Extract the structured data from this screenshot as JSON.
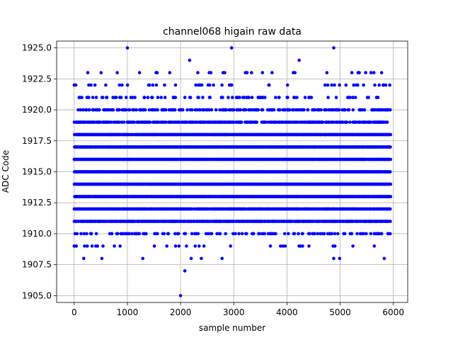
{
  "chart_data": {
    "type": "scatter",
    "title": "channel068 higain raw data",
    "xlabel": "sample number",
    "ylabel": "ADC Code",
    "xlim": [
      -330,
      6270
    ],
    "ylim": [
      1904.45,
      1925.55
    ],
    "xticks": [
      0,
      1000,
      2000,
      3000,
      4000,
      5000,
      6000
    ],
    "xtick_labels": [
      "0",
      "1000",
      "2000",
      "3000",
      "4000",
      "5000",
      "6000"
    ],
    "yticks": [
      1905.0,
      1907.5,
      1910.0,
      1912.5,
      1915.0,
      1917.5,
      1920.0,
      1922.5,
      1925.0
    ],
    "ytick_labels": [
      "1905.0",
      "1907.5",
      "1910.0",
      "1912.5",
      "1915.0",
      "1917.5",
      "1920.0",
      "1922.5",
      "1925.0"
    ],
    "grid": true,
    "marker_color": "#0000ff",
    "n_samples": 5950,
    "dense_levels": [
      1911,
      1912,
      1913,
      1914,
      1915,
      1916,
      1917,
      1918
    ],
    "band_density": [
      {
        "y": 1918,
        "density": 0.93
      },
      {
        "y": 1917,
        "density": 0.97
      },
      {
        "y": 1916,
        "density": 0.99
      },
      {
        "y": 1915,
        "density": 0.99
      },
      {
        "y": 1914,
        "density": 0.99
      },
      {
        "y": 1913,
        "density": 0.97
      },
      {
        "y": 1912,
        "density": 0.92
      },
      {
        "y": 1911,
        "density": 0.75
      },
      {
        "y": 1919,
        "density": 0.55
      },
      {
        "y": 1920,
        "density": 0.3
      },
      {
        "y": 1910,
        "density": 0.2
      },
      {
        "y": 1921,
        "density": 0.14
      },
      {
        "y": 1909,
        "density": 0.05
      },
      {
        "y": 1922,
        "density": 0.07
      },
      {
        "y": 1923,
        "density": 0.02
      }
    ],
    "outliers": [
      {
        "x": 0,
        "y": 1922
      },
      {
        "x": 30,
        "y": 1922
      },
      {
        "x": 0,
        "y": 1909
      },
      {
        "x": 40,
        "y": 1909
      },
      {
        "x": 1000,
        "y": 1925
      },
      {
        "x": 2960,
        "y": 1925
      },
      {
        "x": 4880,
        "y": 1925
      },
      {
        "x": 2170,
        "y": 1924
      },
      {
        "x": 4230,
        "y": 1924
      },
      {
        "x": 1230,
        "y": 1923
      },
      {
        "x": 1540,
        "y": 1923
      },
      {
        "x": 1560,
        "y": 1923
      },
      {
        "x": 2570,
        "y": 1923
      },
      {
        "x": 2800,
        "y": 1923
      },
      {
        "x": 2830,
        "y": 1923
      },
      {
        "x": 3250,
        "y": 1923
      },
      {
        "x": 3540,
        "y": 1923
      },
      {
        "x": 3720,
        "y": 1923
      },
      {
        "x": 4120,
        "y": 1923
      },
      {
        "x": 4150,
        "y": 1923
      },
      {
        "x": 5220,
        "y": 1923
      },
      {
        "x": 5360,
        "y": 1923
      },
      {
        "x": 5480,
        "y": 1923
      },
      {
        "x": 5580,
        "y": 1923
      },
      {
        "x": 5780,
        "y": 1923
      },
      {
        "x": 180,
        "y": 1908
      },
      {
        "x": 520,
        "y": 1908
      },
      {
        "x": 1290,
        "y": 1908
      },
      {
        "x": 2200,
        "y": 1908
      },
      {
        "x": 2390,
        "y": 1908
      },
      {
        "x": 2780,
        "y": 1908
      },
      {
        "x": 4880,
        "y": 1908
      },
      {
        "x": 4990,
        "y": 1908
      },
      {
        "x": 5830,
        "y": 1908
      },
      {
        "x": 2080,
        "y": 1907
      },
      {
        "x": 2000,
        "y": 1905
      }
    ]
  }
}
